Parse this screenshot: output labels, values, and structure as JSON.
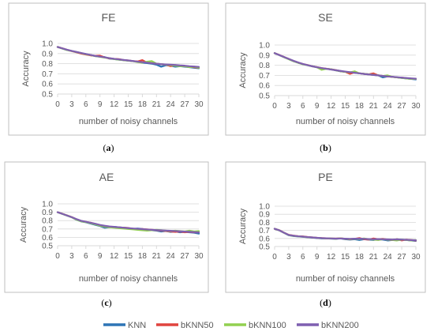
{
  "colors": {
    "KNN": "#2E75B6",
    "bKNN50": "#E0443E",
    "bKNN100": "#92D050",
    "bKNN200": "#7F5FB0",
    "frame": "#bfbfbf",
    "grid": "#d9d9d9",
    "text": "#595959"
  },
  "legend": {
    "items": [
      {
        "key": "KNN",
        "label": "KNN"
      },
      {
        "key": "bKNN50",
        "label": "bKNN50"
      },
      {
        "key": "bKNN100",
        "label": "bKNN100"
      },
      {
        "key": "bKNN200",
        "label": "bKNN200"
      }
    ]
  },
  "chart_data": [
    {
      "type": "line",
      "title": "FE",
      "caption": "(a)",
      "xlabel": "number of noisy channels",
      "ylabel": "Accuracy",
      "xlim": [
        0,
        30
      ],
      "ylim": [
        0.5,
        1.0
      ],
      "xticks": [
        0,
        3,
        6,
        9,
        12,
        15,
        18,
        21,
        24,
        27,
        30
      ],
      "yticks": [
        0.5,
        0.6,
        0.7,
        0.8,
        0.9,
        1.0
      ],
      "ytick_labels": [
        "0.5",
        "0.6",
        "0.7",
        "0.8",
        "0.9",
        "1.0"
      ],
      "grid": "horizontal",
      "x": [
        0,
        1,
        2,
        3,
        4,
        5,
        6,
        7,
        8,
        9,
        10,
        11,
        12,
        13,
        14,
        15,
        16,
        17,
        18,
        19,
        20,
        21,
        22,
        23,
        24,
        25,
        26,
        27,
        28,
        29,
        30
      ],
      "series": [
        {
          "name": "KNN",
          "values": [
            0.965,
            0.95,
            0.935,
            0.925,
            0.915,
            0.905,
            0.895,
            0.885,
            0.875,
            0.87,
            0.865,
            0.85,
            0.845,
            0.84,
            0.835,
            0.83,
            0.825,
            0.82,
            0.81,
            0.805,
            0.8,
            0.79,
            0.77,
            0.785,
            0.78,
            0.77,
            0.775,
            0.77,
            0.765,
            0.76,
            0.755
          ]
        },
        {
          "name": "bKNN50",
          "values": [
            0.965,
            0.952,
            0.937,
            0.924,
            0.913,
            0.9,
            0.89,
            0.882,
            0.878,
            0.88,
            0.862,
            0.852,
            0.848,
            0.845,
            0.836,
            0.832,
            0.825,
            0.822,
            0.835,
            0.81,
            0.805,
            0.8,
            0.795,
            0.79,
            0.775,
            0.785,
            0.78,
            0.775,
            0.77,
            0.765,
            0.76
          ]
        },
        {
          "name": "bKNN100",
          "values": [
            0.965,
            0.95,
            0.935,
            0.925,
            0.915,
            0.905,
            0.893,
            0.885,
            0.875,
            0.868,
            0.86,
            0.855,
            0.845,
            0.84,
            0.835,
            0.83,
            0.825,
            0.815,
            0.81,
            0.82,
            0.825,
            0.8,
            0.795,
            0.79,
            0.785,
            0.78,
            0.775,
            0.775,
            0.765,
            0.77,
            0.76
          ]
        },
        {
          "name": "bKNN200",
          "values": [
            0.965,
            0.952,
            0.938,
            0.926,
            0.916,
            0.906,
            0.896,
            0.886,
            0.877,
            0.87,
            0.863,
            0.855,
            0.848,
            0.843,
            0.837,
            0.832,
            0.826,
            0.82,
            0.815,
            0.81,
            0.805,
            0.8,
            0.795,
            0.792,
            0.79,
            0.787,
            0.783,
            0.78,
            0.775,
            0.772,
            0.768
          ]
        }
      ]
    },
    {
      "type": "line",
      "title": "SE",
      "caption": "(b)",
      "xlabel": "number of noisy channels",
      "ylabel": "Accuracy",
      "xlim": [
        0,
        30
      ],
      "ylim": [
        0.5,
        1.0
      ],
      "xticks": [
        0,
        3,
        6,
        9,
        12,
        15,
        18,
        21,
        24,
        27,
        30
      ],
      "yticks": [
        0.5,
        0.6,
        0.7,
        0.8,
        0.9,
        1.0
      ],
      "ytick_labels": [
        "0.5",
        "0.6",
        "0.7",
        "0.8",
        "0.9",
        "1.0"
      ],
      "grid": "horizontal",
      "x": [
        0,
        1,
        2,
        3,
        4,
        5,
        6,
        7,
        8,
        9,
        10,
        11,
        12,
        13,
        14,
        15,
        16,
        17,
        18,
        19,
        20,
        21,
        22,
        23,
        24,
        25,
        26,
        27,
        28,
        29,
        30
      ],
      "series": [
        {
          "name": "KNN",
          "values": [
            0.92,
            0.9,
            0.88,
            0.86,
            0.84,
            0.825,
            0.81,
            0.8,
            0.79,
            0.78,
            0.77,
            0.765,
            0.76,
            0.75,
            0.74,
            0.735,
            0.73,
            0.725,
            0.72,
            0.715,
            0.71,
            0.705,
            0.7,
            0.68,
            0.69,
            0.685,
            0.68,
            0.675,
            0.67,
            0.665,
            0.66
          ]
        },
        {
          "name": "bKNN50",
          "values": [
            0.92,
            0.902,
            0.882,
            0.862,
            0.842,
            0.826,
            0.812,
            0.802,
            0.79,
            0.782,
            0.772,
            0.766,
            0.76,
            0.752,
            0.742,
            0.735,
            0.715,
            0.73,
            0.72,
            0.715,
            0.71,
            0.72,
            0.7,
            0.695,
            0.69,
            0.685,
            0.68,
            0.678,
            0.672,
            0.668,
            0.665
          ]
        },
        {
          "name": "bKNN100",
          "values": [
            0.92,
            0.9,
            0.88,
            0.86,
            0.842,
            0.825,
            0.81,
            0.8,
            0.79,
            0.78,
            0.755,
            0.765,
            0.76,
            0.75,
            0.742,
            0.735,
            0.73,
            0.74,
            0.72,
            0.715,
            0.71,
            0.705,
            0.7,
            0.695,
            0.7,
            0.685,
            0.68,
            0.675,
            0.67,
            0.665,
            0.665
          ]
        },
        {
          "name": "bKNN200",
          "values": [
            0.92,
            0.901,
            0.882,
            0.863,
            0.845,
            0.828,
            0.813,
            0.801,
            0.79,
            0.781,
            0.772,
            0.765,
            0.758,
            0.751,
            0.744,
            0.738,
            0.732,
            0.726,
            0.72,
            0.714,
            0.709,
            0.704,
            0.7,
            0.695,
            0.69,
            0.686,
            0.682,
            0.678,
            0.674,
            0.67,
            0.667
          ]
        }
      ]
    },
    {
      "type": "line",
      "title": "AE",
      "caption": "(c)",
      "xlabel": "number of noisy channels",
      "ylabel": "Accuracy",
      "xlim": [
        0,
        30
      ],
      "ylim": [
        0.5,
        1.0
      ],
      "xticks": [
        0,
        3,
        6,
        9,
        12,
        15,
        18,
        21,
        24,
        27,
        30
      ],
      "yticks": [
        0.5,
        0.6,
        0.7,
        0.8,
        0.9,
        1.0
      ],
      "ytick_labels": [
        "0.5",
        "0.6",
        "0.7",
        "0.8",
        "0.9",
        "1.0"
      ],
      "grid": "horizontal",
      "x": [
        0,
        1,
        2,
        3,
        4,
        5,
        6,
        7,
        8,
        9,
        10,
        11,
        12,
        13,
        14,
        15,
        16,
        17,
        18,
        19,
        20,
        21,
        22,
        23,
        24,
        25,
        26,
        27,
        28,
        29,
        30
      ],
      "series": [
        {
          "name": "KNN",
          "values": [
            0.9,
            0.88,
            0.86,
            0.84,
            0.81,
            0.79,
            0.78,
            0.765,
            0.75,
            0.735,
            0.715,
            0.72,
            0.725,
            0.72,
            0.715,
            0.71,
            0.7,
            0.705,
            0.7,
            0.69,
            0.685,
            0.68,
            0.67,
            0.675,
            0.665,
            0.67,
            0.66,
            0.665,
            0.66,
            0.655,
            0.645
          ]
        },
        {
          "name": "bKNN50",
          "values": [
            0.9,
            0.882,
            0.862,
            0.842,
            0.815,
            0.795,
            0.785,
            0.775,
            0.76,
            0.74,
            0.73,
            0.725,
            0.72,
            0.718,
            0.715,
            0.712,
            0.7,
            0.695,
            0.7,
            0.695,
            0.69,
            0.685,
            0.68,
            0.675,
            0.67,
            0.665,
            0.67,
            0.66,
            0.665,
            0.66,
            0.66
          ]
        },
        {
          "name": "bKNN100",
          "values": [
            0.9,
            0.88,
            0.86,
            0.84,
            0.812,
            0.792,
            0.782,
            0.77,
            0.755,
            0.74,
            0.73,
            0.72,
            0.715,
            0.71,
            0.705,
            0.7,
            0.695,
            0.69,
            0.685,
            0.68,
            0.685,
            0.69,
            0.685,
            0.68,
            0.675,
            0.68,
            0.675,
            0.67,
            0.68,
            0.67,
            0.675
          ]
        },
        {
          "name": "bKNN200",
          "values": [
            0.9,
            0.881,
            0.861,
            0.841,
            0.818,
            0.798,
            0.786,
            0.774,
            0.762,
            0.748,
            0.738,
            0.73,
            0.725,
            0.72,
            0.715,
            0.71,
            0.706,
            0.702,
            0.698,
            0.694,
            0.69,
            0.687,
            0.684,
            0.681,
            0.678,
            0.675,
            0.672,
            0.669,
            0.666,
            0.663,
            0.66
          ]
        }
      ]
    },
    {
      "type": "line",
      "title": "PE",
      "caption": "(d)",
      "xlabel": "number of noisy channels",
      "ylabel": "Accuracy",
      "xlim": [
        0,
        30
      ],
      "ylim": [
        0.5,
        1.0
      ],
      "xticks": [
        0,
        3,
        6,
        9,
        12,
        15,
        18,
        21,
        24,
        27,
        30
      ],
      "yticks": [
        0.5,
        0.6,
        0.7,
        0.8,
        0.9,
        1.0
      ],
      "ytick_labels": [
        "0.5",
        "0.6",
        "0.7",
        "0.8",
        "0.9",
        "1.0"
      ],
      "grid": "horizontal",
      "x": [
        0,
        1,
        2,
        3,
        4,
        5,
        6,
        7,
        8,
        9,
        10,
        11,
        12,
        13,
        14,
        15,
        16,
        17,
        18,
        19,
        20,
        21,
        22,
        23,
        24,
        25,
        26,
        27,
        28,
        29,
        30
      ],
      "series": [
        {
          "name": "KNN",
          "values": [
            0.72,
            0.7,
            0.67,
            0.64,
            0.63,
            0.625,
            0.62,
            0.615,
            0.61,
            0.605,
            0.6,
            0.6,
            0.598,
            0.595,
            0.6,
            0.59,
            0.585,
            0.59,
            0.58,
            0.59,
            0.585,
            0.58,
            0.59,
            0.585,
            0.575,
            0.58,
            0.59,
            0.585,
            0.58,
            0.575,
            0.57
          ]
        },
        {
          "name": "bKNN50",
          "values": [
            0.72,
            0.702,
            0.672,
            0.645,
            0.635,
            0.628,
            0.625,
            0.618,
            0.613,
            0.608,
            0.605,
            0.602,
            0.6,
            0.598,
            0.602,
            0.595,
            0.59,
            0.595,
            0.605,
            0.59,
            0.585,
            0.6,
            0.59,
            0.595,
            0.585,
            0.58,
            0.59,
            0.575,
            0.585,
            0.58,
            0.575
          ]
        },
        {
          "name": "bKNN100",
          "values": [
            0.72,
            0.7,
            0.67,
            0.642,
            0.632,
            0.626,
            0.622,
            0.616,
            0.612,
            0.607,
            0.603,
            0.601,
            0.599,
            0.597,
            0.601,
            0.596,
            0.592,
            0.597,
            0.593,
            0.6,
            0.59,
            0.585,
            0.58,
            0.59,
            0.585,
            0.58,
            0.575,
            0.585,
            0.58,
            0.575,
            0.58
          ]
        },
        {
          "name": "bKNN200",
          "values": [
            0.72,
            0.701,
            0.671,
            0.643,
            0.634,
            0.627,
            0.623,
            0.617,
            0.613,
            0.608,
            0.604,
            0.602,
            0.6,
            0.598,
            0.6,
            0.597,
            0.595,
            0.597,
            0.598,
            0.595,
            0.592,
            0.59,
            0.592,
            0.59,
            0.588,
            0.586,
            0.588,
            0.585,
            0.583,
            0.58,
            0.578
          ]
        }
      ]
    }
  ]
}
